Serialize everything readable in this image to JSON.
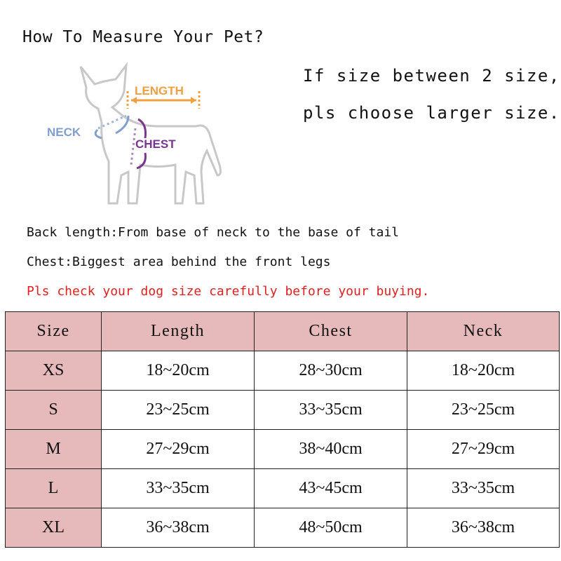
{
  "title": "How To Measure Your Pet?",
  "hint": [
    "If size between 2 size,",
    "pls choose larger size."
  ],
  "diagram": {
    "length_label": "LENGTH",
    "neck_label": "NECK",
    "chest_label": "CHEST",
    "colors": {
      "length": "#f0a040",
      "neck": "#7f9fd0",
      "chest": "#7a3590",
      "outline": "#c8c8c8"
    }
  },
  "notes": [
    "Back length:From base of neck to the base of tail",
    "Chest:Biggest area behind the front legs"
  ],
  "warning": "Pls check your dog size carefully before your buying.",
  "warning_color": "#e02020",
  "header_color": "#e6b9ba",
  "table": {
    "headers": [
      "Size",
      "Length",
      "Chest",
      "Neck"
    ],
    "rows": [
      [
        "XS",
        "18~20cm",
        "28~30cm",
        "18~20cm"
      ],
      [
        "S",
        "23~25cm",
        "33~35cm",
        "23~25cm"
      ],
      [
        "M",
        "27~29cm",
        "38~40cm",
        "27~29cm"
      ],
      [
        "L",
        "33~35cm",
        "43~45cm",
        "33~35cm"
      ],
      [
        "XL",
        "36~38cm",
        "48~50cm",
        "36~38cm"
      ]
    ]
  }
}
